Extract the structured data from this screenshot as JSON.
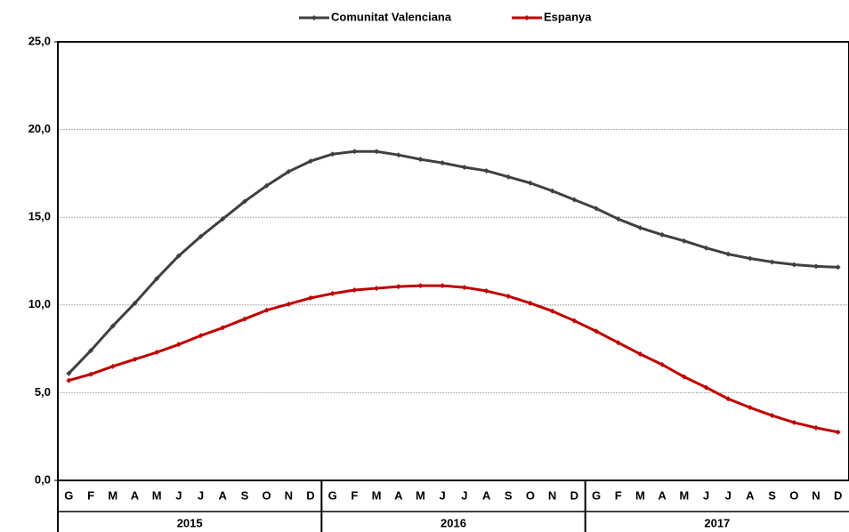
{
  "chart_data": {
    "type": "line",
    "categories": [
      "G",
      "F",
      "M",
      "A",
      "M",
      "J",
      "J",
      "A",
      "S",
      "O",
      "N",
      "D",
      "G",
      "F",
      "M",
      "A",
      "M",
      "J",
      "J",
      "A",
      "S",
      "O",
      "N",
      "D",
      "G",
      "F",
      "M",
      "A",
      "M",
      "J",
      "J",
      "A",
      "S",
      "O",
      "N",
      "D"
    ],
    "groups": [
      "2015",
      "2016",
      "2017"
    ],
    "series": [
      {
        "name": "Comunitat Valenciana",
        "color": "#404040",
        "values": [
          6.1,
          7.4,
          8.8,
          10.1,
          11.5,
          12.8,
          13.9,
          14.9,
          15.9,
          16.8,
          17.6,
          18.2,
          18.6,
          18.75,
          18.75,
          18.55,
          18.3,
          18.1,
          17.85,
          17.65,
          17.3,
          16.95,
          16.5,
          16.0,
          15.5,
          14.9,
          14.4,
          14.0,
          13.65,
          13.25,
          12.9,
          12.65,
          12.45,
          12.3,
          12.2,
          12.15
        ]
      },
      {
        "name": "Espanya",
        "color": "#c00000",
        "values": [
          5.7,
          6.05,
          6.5,
          6.9,
          7.3,
          7.75,
          8.25,
          8.7,
          9.2,
          9.7,
          10.05,
          10.4,
          10.65,
          10.85,
          10.95,
          11.05,
          11.1,
          11.1,
          11.0,
          10.8,
          10.5,
          10.1,
          9.65,
          9.1,
          8.5,
          7.85,
          7.2,
          6.6,
          5.9,
          5.3,
          4.65,
          4.15,
          3.7,
          3.3,
          3.0,
          2.75
        ]
      }
    ],
    "ylim": [
      0,
      25
    ],
    "yticks": [
      {
        "value": 0,
        "label": "0,0"
      },
      {
        "value": 5,
        "label": "5,0"
      },
      {
        "value": 10,
        "label": "10,0"
      },
      {
        "value": 15,
        "label": "15,0"
      },
      {
        "value": 20,
        "label": "20,0"
      },
      {
        "value": 25,
        "label": "25,0"
      }
    ],
    "grid": true
  }
}
